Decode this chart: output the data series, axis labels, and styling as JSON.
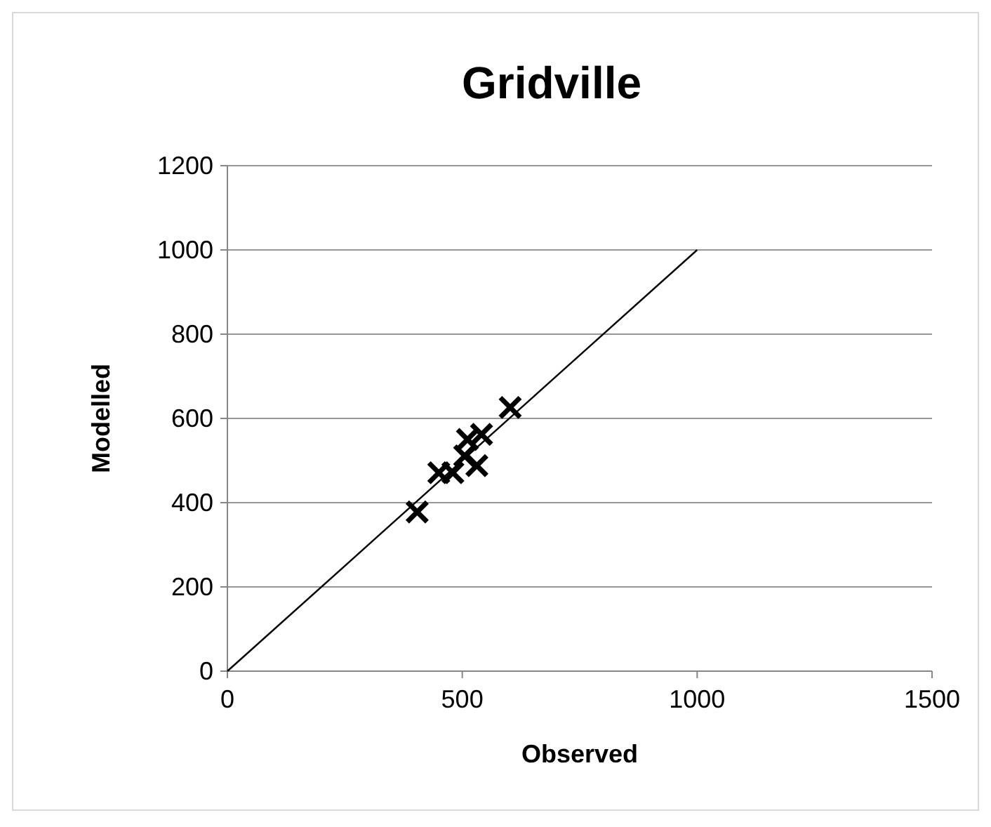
{
  "chart_data": {
    "type": "scatter",
    "title": "Gridville",
    "xlabel": "Observed",
    "ylabel": "Modelled",
    "xlim": [
      0,
      1500
    ],
    "xticks": [
      0,
      500,
      1000,
      1500
    ],
    "ylim": [
      0,
      1200
    ],
    "yticks": [
      0,
      200,
      400,
      600,
      800,
      1000,
      1200
    ],
    "grid": "y",
    "series": [
      {
        "color": "#000000",
        "marker": "cross",
        "x": [
          404,
          450,
          480,
          505,
          511,
          531,
          541,
          602
        ],
        "values": [
          378,
          471,
          471,
          511,
          550,
          488,
          562,
          626
        ]
      },
      {
        "type": "line",
        "color": "#000000",
        "x": [
          0,
          1000
        ],
        "values": [
          0,
          1000
        ]
      }
    ]
  }
}
